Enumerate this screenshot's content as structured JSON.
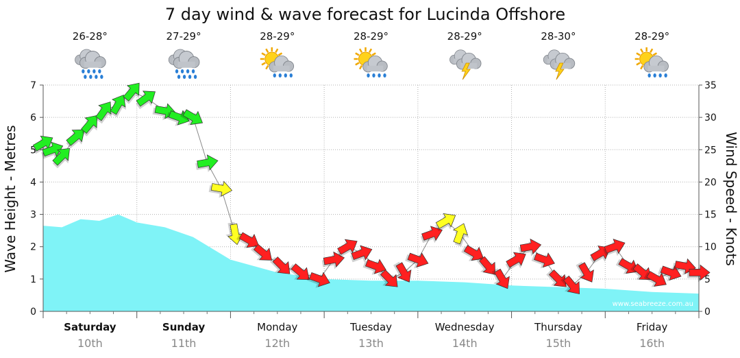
{
  "chart_data": {
    "type": "area",
    "title": "7 day wind & wave forecast for Lucinda Offshore",
    "y_left_label": "Wave Height - Metres",
    "y_right_label": "Wind Speed - Knots",
    "y_left_range": [
      0,
      7
    ],
    "y_right_range": [
      0,
      35
    ],
    "y_left_ticks": [
      "0",
      "1",
      "2",
      "3",
      "4",
      "5",
      "6",
      "7"
    ],
    "y_right_ticks": [
      "0",
      "5",
      "10",
      "15",
      "20",
      "25",
      "30",
      "35"
    ],
    "grid": true,
    "watermark": "www.seabreeze.com.au",
    "colors": {
      "wave_fill": "#7ff3f7",
      "wind_strong": "#22ee22",
      "wind_moderate": "#ffff22",
      "wind_light": "#ff2020"
    },
    "days": [
      {
        "name": "Saturday",
        "date": "10th",
        "temp": "26-28°",
        "icon": "rain-cloud-icon",
        "bold": true
      },
      {
        "name": "Sunday",
        "date": "11th",
        "temp": "27-29°",
        "icon": "rain-cloud-icon",
        "bold": true
      },
      {
        "name": "Monday",
        "date": "12th",
        "temp": "28-29°",
        "icon": "sun-shower-icon",
        "bold": false
      },
      {
        "name": "Tuesday",
        "date": "13th",
        "temp": "28-29°",
        "icon": "sun-shower-icon",
        "bold": false
      },
      {
        "name": "Wednesday",
        "date": "14th",
        "temp": "28-29°",
        "icon": "storm-cloud-icon",
        "bold": false
      },
      {
        "name": "Thursday",
        "date": "15th",
        "temp": "28-30°",
        "icon": "storm-cloud-icon",
        "bold": false
      },
      {
        "name": "Friday",
        "date": "16th",
        "temp": "28-29°",
        "icon": "sun-shower-icon",
        "bold": false
      }
    ],
    "wave_height": {
      "name": "Wave Height",
      "x_days": [
        0,
        0.2,
        0.4,
        0.6,
        0.8,
        1.0,
        1.3,
        1.6,
        2.0,
        2.5,
        3.0,
        3.5,
        4.0,
        4.5,
        5.0,
        5.5,
        6.0,
        6.5,
        7.0
      ],
      "values": [
        2.65,
        2.6,
        2.85,
        2.8,
        3.0,
        2.75,
        2.6,
        2.3,
        1.6,
        1.2,
        1.0,
        0.95,
        0.95,
        0.9,
        0.8,
        0.75,
        0.7,
        0.6,
        0.55
      ]
    },
    "wind": {
      "name": "Wind Speed",
      "x_days": [
        0.0,
        0.1,
        0.2,
        0.35,
        0.5,
        0.65,
        0.8,
        0.95,
        1.1,
        1.3,
        1.45,
        1.6,
        1.75,
        1.9,
        2.05,
        2.2,
        2.35,
        2.55,
        2.75,
        2.95,
        3.1,
        3.25,
        3.4,
        3.55,
        3.7,
        3.85,
        4.0,
        4.15,
        4.3,
        4.45,
        4.6,
        4.75,
        4.9,
        5.05,
        5.2,
        5.35,
        5.5,
        5.65,
        5.8,
        5.95,
        6.1,
        6.25,
        6.4,
        6.55,
        6.7,
        6.85,
        7.0
      ],
      "knots": [
        26,
        25,
        24,
        27,
        29,
        31,
        32,
        34,
        33,
        31,
        30,
        30,
        23,
        19,
        12,
        11,
        9,
        7,
        6,
        5,
        8,
        10,
        9,
        7,
        5,
        6,
        8,
        12,
        14,
        12,
        9,
        7,
        5,
        8,
        10,
        8,
        5,
        4,
        6,
        9,
        10,
        7,
        6,
        5,
        6,
        7,
        6
      ],
      "direction_deg": [
        60,
        70,
        45,
        50,
        40,
        35,
        30,
        40,
        55,
        100,
        110,
        120,
        80,
        100,
        170,
        120,
        130,
        135,
        130,
        110,
        80,
        60,
        70,
        110,
        135,
        150,
        110,
        70,
        60,
        20,
        120,
        140,
        150,
        60,
        80,
        110,
        135,
        140,
        150,
        60,
        70,
        120,
        130,
        120,
        110,
        100,
        90
      ],
      "category": [
        "strong",
        "strong",
        "strong",
        "strong",
        "strong",
        "strong",
        "strong",
        "strong",
        "strong",
        "strong",
        "strong",
        "strong",
        "strong",
        "moderate",
        "moderate",
        "light",
        "light",
        "light",
        "light",
        "light",
        "light",
        "light",
        "light",
        "light",
        "light",
        "light",
        "light",
        "light",
        "moderate",
        "moderate",
        "light",
        "light",
        "light",
        "light",
        "light",
        "light",
        "light",
        "light",
        "light",
        "light",
        "light",
        "light",
        "light",
        "light",
        "light",
        "light",
        "light"
      ]
    }
  }
}
